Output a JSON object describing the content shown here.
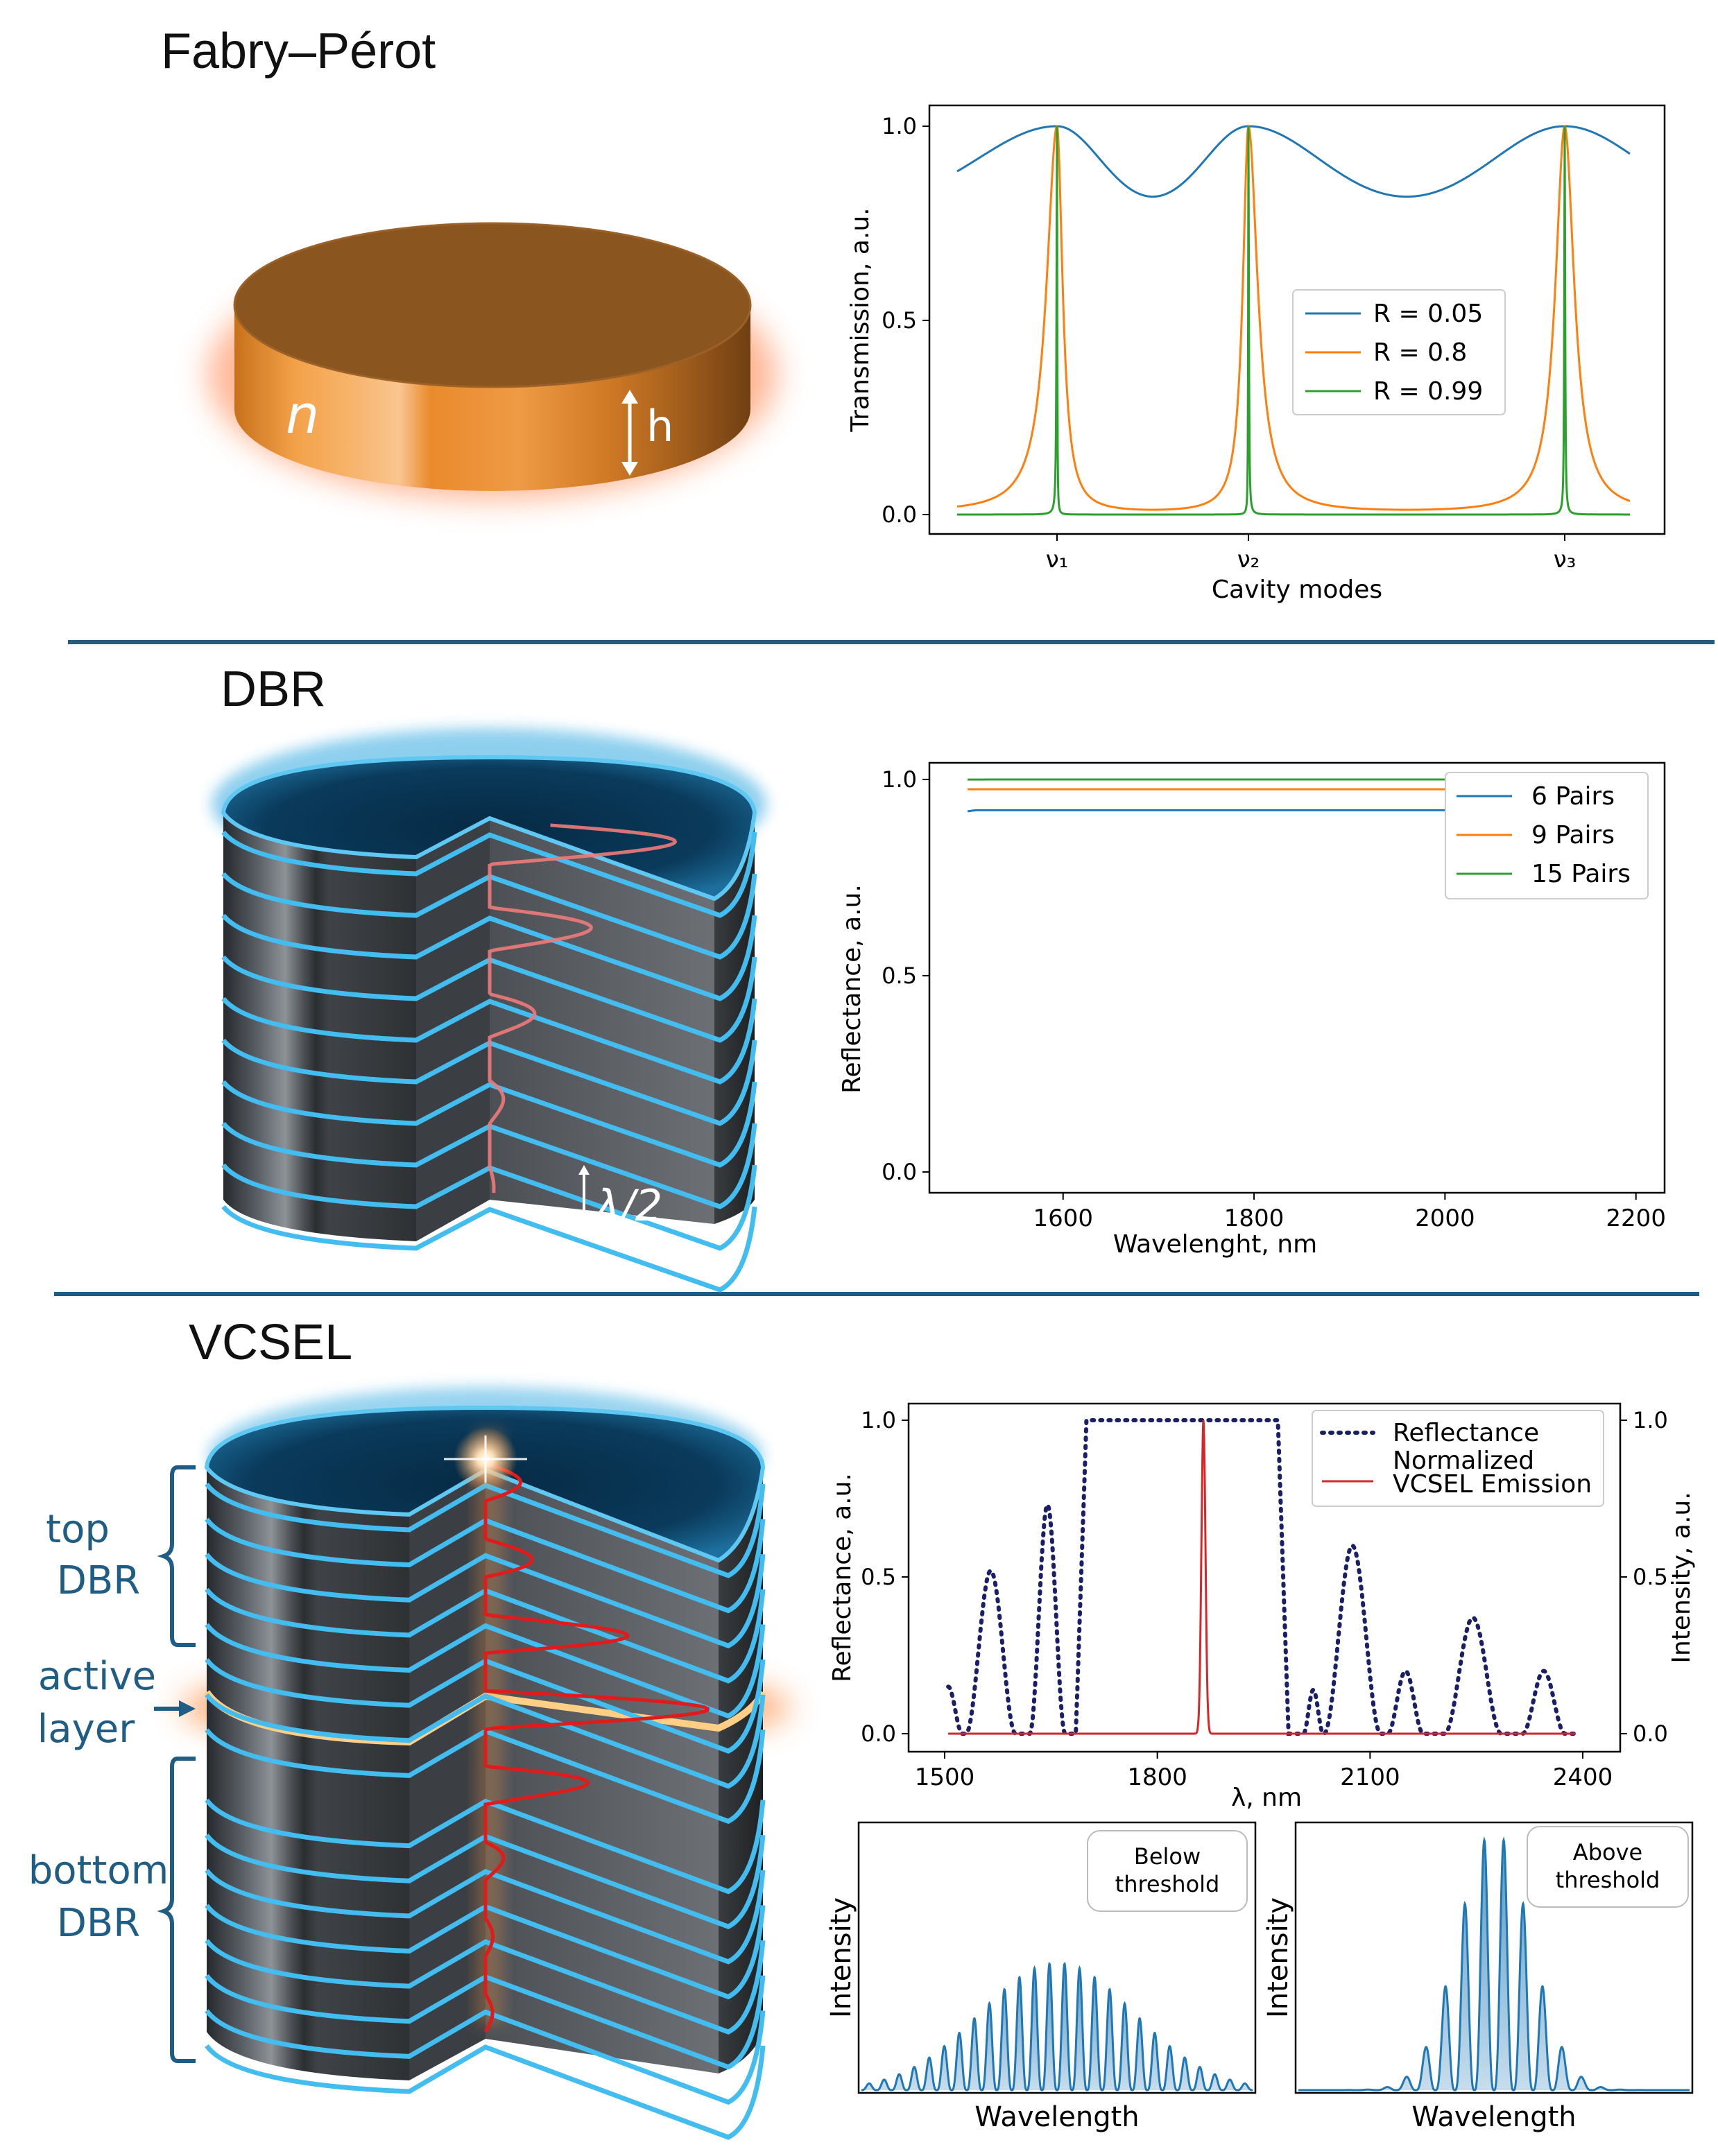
{
  "sections": {
    "fabry_perot": {
      "title": "Fabry–Pérot",
      "symbol_n": "n",
      "symbol_h": "h"
    },
    "dbr": {
      "title": "DBR",
      "symbol_lambda": "λ/2"
    },
    "vcsel": {
      "title": "VCSEL",
      "labels": {
        "top_line1": "top",
        "top_line2": "DBR",
        "active_line1": "active",
        "active_line2": "layer",
        "bottom_line1": "bottom",
        "bottom_line2": "DBR"
      }
    }
  },
  "colors": {
    "c_blue": "#1f77b4",
    "c_orange": "#ff7f0e",
    "c_green": "#2ca02c",
    "c_navy": "#1b1f66",
    "c_red": "#d62728",
    "divider": "#1f5d84"
  },
  "chart_data": [
    {
      "id": "fp",
      "type": "line",
      "xlabel": "Cavity modes",
      "ylabel": "Transmission, a.u.",
      "ylim": [
        0,
        1.0
      ],
      "yticks": [
        "0.0",
        "0.5",
        "1.0"
      ],
      "xticks": [
        "ν₁",
        "ν₂",
        "ν₃"
      ],
      "legend_position": "center-right",
      "series": [
        {
          "name": "R = 0.05",
          "color": "#1f77b4"
        },
        {
          "name": "R = 0.8",
          "color": "#ff7f0e"
        },
        {
          "name": "R = 0.99",
          "color": "#2ca02c"
        }
      ],
      "peaks_at": [
        "ν₁",
        "ν₂",
        "ν₃"
      ],
      "peak_value": 1.0,
      "min_value_R005": 0.82
    },
    {
      "id": "dbr",
      "type": "line",
      "xlabel": "Wavelenght, nm",
      "ylabel": "Reflectance, a.u.",
      "xlim": [
        1500,
        2200
      ],
      "ylim": [
        0,
        1.0
      ],
      "xticks": [
        "1600",
        "1800",
        "2000",
        "2200"
      ],
      "yticks": [
        "0.0",
        "0.5",
        "1.0"
      ],
      "legend_position": "top-right",
      "center_nm": 1800,
      "series": [
        {
          "name": "6 Pairs",
          "color": "#1f77b4",
          "peak": 0.96
        },
        {
          "name": "9 Pairs",
          "color": "#ff7f0e",
          "peak": 0.995
        },
        {
          "name": "15 Pairs",
          "color": "#2ca02c",
          "peak": 1.0
        }
      ]
    },
    {
      "id": "vcsel",
      "type": "line",
      "xlabel": "λ, nm",
      "ylabel": "Reflectance, a.u.",
      "ylabel_right": "Intensity, a.u.",
      "xlim": [
        1500,
        2400
      ],
      "ylim": [
        0,
        1.0
      ],
      "xticks": [
        "1500",
        "1800",
        "2100",
        "2400"
      ],
      "yticks": [
        "0.0",
        "0.5",
        "1.0"
      ],
      "yticks_right": [
        "0.0",
        "0.5",
        "1.0"
      ],
      "legend_position": "top-right",
      "series": [
        {
          "name": "Reflectance",
          "color": "#1b1f66",
          "style": "dotted"
        },
        {
          "name_line1": "Normalized",
          "name_line2": "VCSEL Emission",
          "color": "#d62728",
          "peak_nm": 1865,
          "peak": 1.0
        }
      ]
    },
    {
      "id": "below",
      "type": "area",
      "xlabel": "Wavelength",
      "ylabel": "Intensity",
      "annotation_line1": "Below",
      "annotation_line2": "threshold",
      "peak_count": 26,
      "max_value": 0.48
    },
    {
      "id": "above",
      "type": "area",
      "xlabel": "Wavelength",
      "ylabel": "Intensity",
      "annotation_line1": "Above",
      "annotation_line2": "threshold",
      "peak_count": 20,
      "max_value": 1.0
    }
  ]
}
